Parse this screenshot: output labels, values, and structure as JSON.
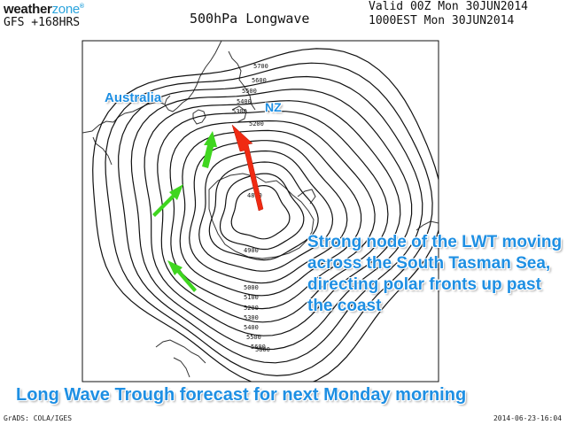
{
  "header": {
    "brand_main": "weather",
    "brand_accent": "zone",
    "brand_mark": "®",
    "model_run": "GFS +168HRS",
    "title": "500hPa Longwave",
    "valid_line1": "Valid 00Z Mon 30JUN2014",
    "valid_line2": "1000EST Mon 30JUN2014"
  },
  "map": {
    "labels": {
      "australia": "Australia",
      "nz": "NZ"
    },
    "contour_labels": [
      "5700",
      "5600",
      "5500",
      "5400",
      "5300",
      "5200",
      "4800",
      "4900",
      "5000",
      "5100",
      "5200",
      "5300",
      "5400",
      "5500",
      "5600",
      "5800"
    ],
    "annotation": "Strong node of the LWT moving across the South Tasman Sea, directing polar fronts up past the coast",
    "caption": "Long Wave Trough forecast for next Monday morning",
    "colors": {
      "contour": "#111111",
      "coast": "#333333",
      "annotation_text": "#1e8fe3",
      "arrow_red": "#f02a12",
      "arrow_green": "#3fd61f"
    }
  },
  "footer": {
    "left": "GrADS: COLA/IGES",
    "right": "2014-06-23-16:04"
  }
}
